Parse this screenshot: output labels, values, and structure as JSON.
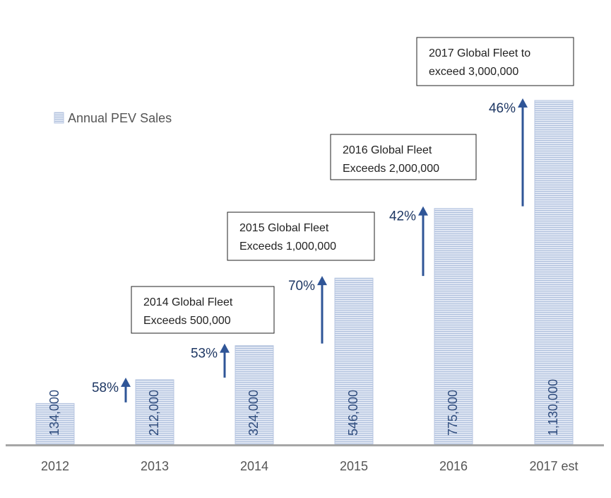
{
  "colors": {
    "bar_fill": "#dfe6f3",
    "bar_stripe": "#aebfdc",
    "bar_edge": "#b7c6e0",
    "arrow": "#2f5597",
    "pct_text": "#1f3864",
    "value_text": "#2e4b7c",
    "axis": "#a6a6a6"
  },
  "chart_data": {
    "type": "bar",
    "categories": [
      "2012",
      "2013",
      "2014",
      "2015",
      "2016",
      "2017 est"
    ],
    "values": [
      134000,
      212000,
      324000,
      546000,
      775000,
      1130000
    ],
    "value_labels": [
      "134,000",
      "212,000",
      "324,000",
      "546,000",
      "775,000",
      "1,130,000"
    ],
    "growth": [
      {
        "to": "2013",
        "label": "58%"
      },
      {
        "to": "2014",
        "label": "53%"
      },
      {
        "to": "2015",
        "label": "70%"
      },
      {
        "to": "2016",
        "label": "42%"
      },
      {
        "to": "2017 est",
        "label": "46%"
      }
    ],
    "legend": "Annual PEV Sales",
    "legend_position": "top-left",
    "annotations": [
      {
        "category": "2014",
        "lines": [
          "2014 Global Fleet",
          "Exceeds 500,000"
        ]
      },
      {
        "category": "2015",
        "lines": [
          "2015 Global Fleet",
          "Exceeds 1,000,000"
        ]
      },
      {
        "category": "2016",
        "lines": [
          "2016 Global Fleet",
          "Exceeds 2,000,000"
        ]
      },
      {
        "category": "2017 est",
        "lines": [
          "2017 Global Fleet to",
          "exceed 3,000,000"
        ]
      }
    ],
    "ylim": [
      0,
      1130000
    ],
    "grid": false,
    "title": "",
    "xlabel": "",
    "ylabel": ""
  }
}
